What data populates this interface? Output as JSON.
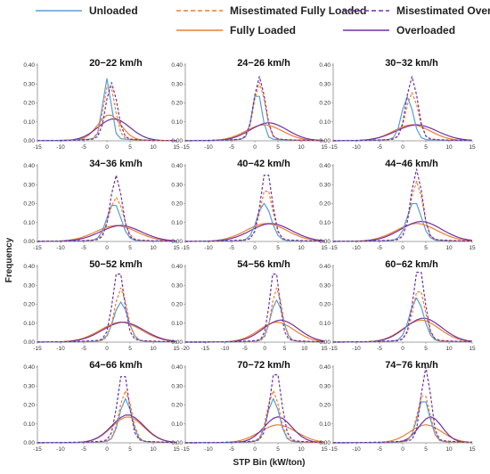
{
  "legend": [
    {
      "name": "Unloaded",
      "color": "#5b9bd5",
      "dash": false
    },
    {
      "name": "Misestimated Fully Loaded",
      "color": "#ed7d31",
      "dash": true
    },
    {
      "name": "Misestimated Overloaded",
      "color": "#7030a0",
      "dash": true
    },
    {
      "name": "Fully Loaded",
      "color": "#ed7d31",
      "dash": false
    },
    {
      "name": "Overloaded",
      "color": "#7030a0",
      "dash": false
    }
  ],
  "chart_data": {
    "type": "line",
    "xlabel": "STP Bin (kW/ton)",
    "ylabel": "Frequency",
    "ylim": [
      0,
      0.4
    ],
    "yticks": [
      "0.00",
      "0.10",
      "0.20",
      "0.30",
      "0.40"
    ],
    "grid": false,
    "legend_position": "top",
    "series_names": [
      "Unloaded",
      "Misestimated Fully Loaded",
      "Misestimated Overloaded",
      "Fully Loaded",
      "Overloaded"
    ],
    "panels": [
      {
        "title": "20−22 km/h",
        "xticks": [
          "-15",
          "-10",
          "-5",
          "0",
          "5",
          "10",
          "15"
        ],
        "xlim": [
          -15,
          15
        ],
        "peaks": [
          {
            "c": 0,
            "h": 0.31,
            "w": 0.9
          },
          {
            "c": 0.5,
            "h": 0.29,
            "w": 1.2
          },
          {
            "c": 1,
            "h": 0.29,
            "w": 1.2
          },
          {
            "c": 0.5,
            "h": 0.13,
            "w": 2.5
          },
          {
            "c": 1.5,
            "h": 0.11,
            "w": 3.5
          }
        ]
      },
      {
        "title": "24−26 km/h",
        "xticks": [
          "-15",
          "-10",
          "-5",
          "0",
          "5",
          "10",
          "15"
        ],
        "xlim": [
          -15,
          15
        ],
        "peaks": [
          {
            "c": 0.5,
            "h": 0.25,
            "w": 1.0
          },
          {
            "c": 1,
            "h": 0.29,
            "w": 1.2
          },
          {
            "c": 1,
            "h": 0.32,
            "w": 1.2
          },
          {
            "c": 2,
            "h": 0.08,
            "w": 4
          },
          {
            "c": 3,
            "h": 0.09,
            "w": 4
          }
        ]
      },
      {
        "title": "30−32 km/h",
        "xticks": [
          "-15",
          "-10",
          "-5",
          "0",
          "5",
          "10",
          "15"
        ],
        "xlim": [
          -15,
          15
        ],
        "peaks": [
          {
            "c": 1,
            "h": 0.22,
            "w": 1.2
          },
          {
            "c": 2,
            "h": 0.24,
            "w": 1.3
          },
          {
            "c": 2,
            "h": 0.32,
            "w": 1.2
          },
          {
            "c": 2,
            "h": 0.08,
            "w": 4
          },
          {
            "c": 3,
            "h": 0.08,
            "w": 4.5
          }
        ]
      },
      {
        "title": "34−36 km/h",
        "xticks": [
          "-15",
          "-10",
          "-5",
          "0",
          "5",
          "10",
          "15"
        ],
        "xlim": [
          -15,
          15
        ],
        "peaks": [
          {
            "c": 1.5,
            "h": 0.19,
            "w": 1.5
          },
          {
            "c": 2,
            "h": 0.22,
            "w": 1.5
          },
          {
            "c": 2,
            "h": 0.33,
            "w": 1.2
          },
          {
            "c": 2,
            "h": 0.08,
            "w": 4.5
          },
          {
            "c": 3,
            "h": 0.08,
            "w": 4.5
          }
        ]
      },
      {
        "title": "40−42 km/h",
        "xticks": [
          "-15",
          "-10",
          "-5",
          "0",
          "5",
          "10",
          "15"
        ],
        "xlim": [
          -15,
          15
        ],
        "peaks": [
          {
            "c": 2,
            "h": 0.19,
            "w": 1.5
          },
          {
            "c": 2.5,
            "h": 0.27,
            "w": 1.3
          },
          {
            "c": 2.5,
            "h": 0.36,
            "w": 1.2
          },
          {
            "c": 2.5,
            "h": 0.09,
            "w": 4.5
          },
          {
            "c": 3.5,
            "h": 0.09,
            "w": 4.5
          }
        ]
      },
      {
        "title": "44−46 km/h",
        "xticks": [
          "-15",
          "-10",
          "-5",
          "0",
          "5",
          "10",
          "15"
        ],
        "xlim": [
          -15,
          15
        ],
        "peaks": [
          {
            "c": 2.5,
            "h": 0.2,
            "w": 1.5
          },
          {
            "c": 3,
            "h": 0.3,
            "w": 1.3
          },
          {
            "c": 3,
            "h": 0.36,
            "w": 1.2
          },
          {
            "c": 3,
            "h": 0.09,
            "w": 4.5
          },
          {
            "c": 4,
            "h": 0.1,
            "w": 4.5
          }
        ]
      },
      {
        "title": "50−52 km/h",
        "xticks": [
          "-15",
          "-10",
          "-5",
          "0",
          "5",
          "10",
          "15"
        ],
        "xlim": [
          -15,
          15
        ],
        "peaks": [
          {
            "c": 3,
            "h": 0.2,
            "w": 1.5
          },
          {
            "c": 3,
            "h": 0.27,
            "w": 1.3
          },
          {
            "c": 2.5,
            "h": 0.37,
            "w": 1.2
          },
          {
            "c": 3,
            "h": 0.1,
            "w": 4.5
          },
          {
            "c": 3.5,
            "h": 0.1,
            "w": 4.5
          }
        ]
      },
      {
        "title": "54−56 km/h",
        "xticks": [
          "-20",
          "-15",
          "-10",
          "-5",
          "0",
          "5",
          "10",
          "15"
        ],
        "xlim": [
          -20,
          15
        ],
        "peaks": [
          {
            "c": 3,
            "h": 0.21,
            "w": 1.5
          },
          {
            "c": 3,
            "h": 0.27,
            "w": 1.3
          },
          {
            "c": 2.5,
            "h": 0.37,
            "w": 1.2
          },
          {
            "c": 3,
            "h": 0.1,
            "w": 4.5
          },
          {
            "c": 4,
            "h": 0.11,
            "w": 4.5
          }
        ]
      },
      {
        "title": "60−62 km/h",
        "xticks": [
          "-15",
          "-10",
          "-5",
          "0",
          "5",
          "10",
          "15"
        ],
        "xlim": [
          -15,
          15
        ],
        "peaks": [
          {
            "c": 3,
            "h": 0.22,
            "w": 1.5
          },
          {
            "c": 3.5,
            "h": 0.27,
            "w": 1.3
          },
          {
            "c": 3.5,
            "h": 0.38,
            "w": 1.2
          },
          {
            "c": 4,
            "h": 0.11,
            "w": 4
          },
          {
            "c": 4.5,
            "h": 0.12,
            "w": 4
          }
        ]
      },
      {
        "title": "64−66 km/h",
        "xticks": [
          "-15",
          "-10",
          "-5",
          "0",
          "5",
          "10",
          "15"
        ],
        "xlim": [
          -15,
          15
        ],
        "peaks": [
          {
            "c": 4,
            "h": 0.22,
            "w": 1.3
          },
          {
            "c": 4,
            "h": 0.26,
            "w": 1.3
          },
          {
            "c": 3.5,
            "h": 0.36,
            "w": 1.2
          },
          {
            "c": 4.5,
            "h": 0.13,
            "w": 3.5
          },
          {
            "c": 4.5,
            "h": 0.14,
            "w": 3.5
          }
        ]
      },
      {
        "title": "70−72 km/h",
        "xticks": [
          "-15",
          "-10",
          "-5",
          "0",
          "5",
          "10",
          "15"
        ],
        "xlim": [
          -15,
          15
        ],
        "peaks": [
          {
            "c": 4,
            "h": 0.22,
            "w": 1.3
          },
          {
            "c": 4,
            "h": 0.26,
            "w": 1.3
          },
          {
            "c": 4.5,
            "h": 0.37,
            "w": 1.2
          },
          {
            "c": 5,
            "h": 0.09,
            "w": 4
          },
          {
            "c": 5,
            "h": 0.13,
            "w": 3
          }
        ]
      },
      {
        "title": "74−76 km/h",
        "xticks": [
          "-15",
          "-10",
          "-5",
          "0",
          "5",
          "10",
          "15"
        ],
        "xlim": [
          -15,
          15
        ],
        "peaks": [
          {
            "c": 4.5,
            "h": 0.22,
            "w": 1.3
          },
          {
            "c": 4.5,
            "h": 0.25,
            "w": 1.3
          },
          {
            "c": 5,
            "h": 0.39,
            "w": 1.0
          },
          {
            "c": 5,
            "h": 0.09,
            "w": 3.5
          },
          {
            "c": 6,
            "h": 0.13,
            "w": 2.5
          }
        ]
      }
    ]
  }
}
